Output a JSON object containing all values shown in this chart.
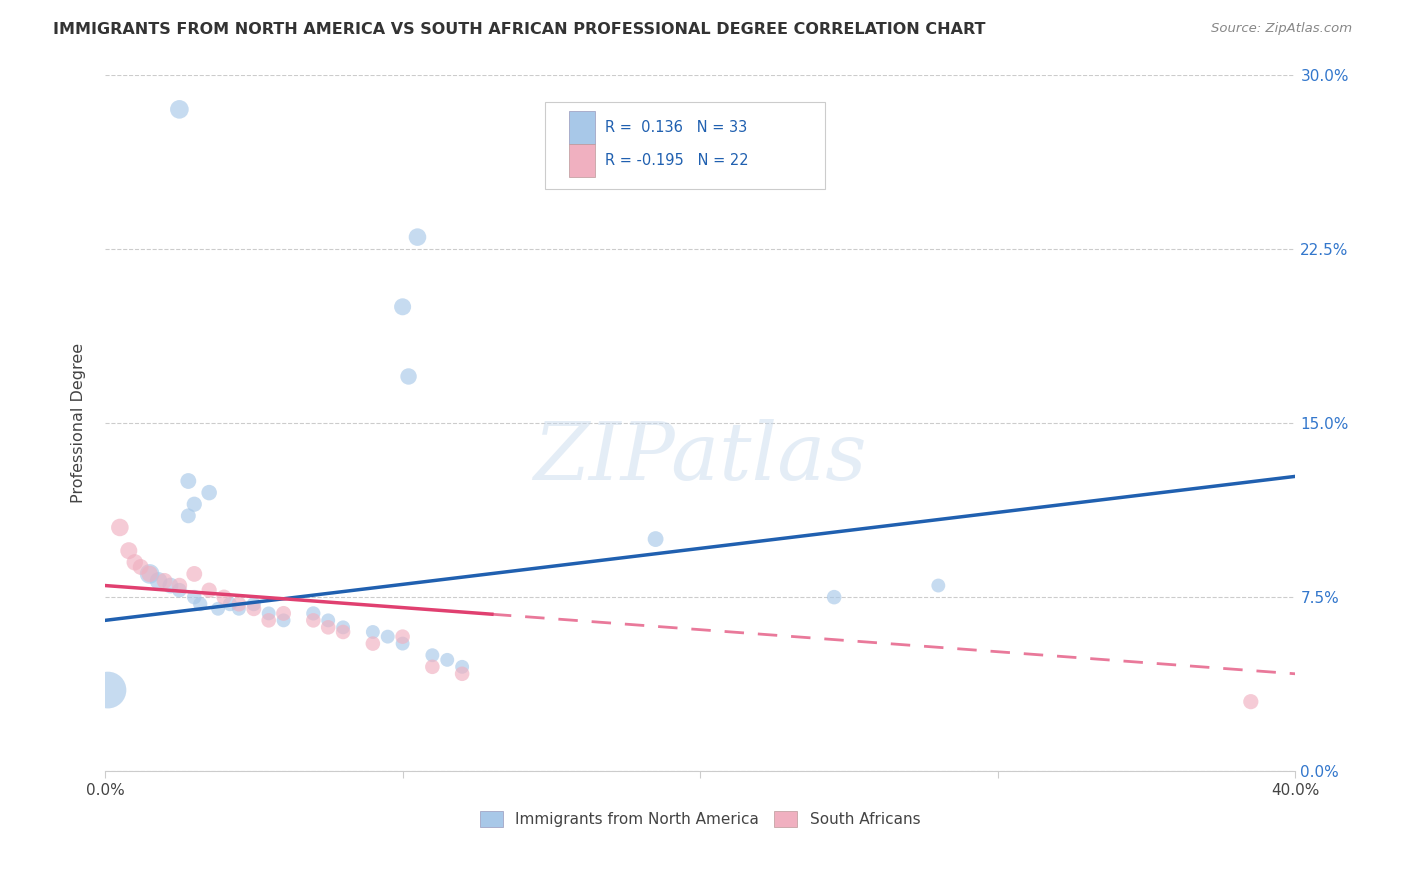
{
  "title": "IMMIGRANTS FROM NORTH AMERICA VS SOUTH AFRICAN PROFESSIONAL DEGREE CORRELATION CHART",
  "source": "Source: ZipAtlas.com",
  "ylabel": "Professional Degree",
  "yticks": [
    "0.0%",
    "7.5%",
    "15.0%",
    "22.5%",
    "30.0%"
  ],
  "ytick_vals": [
    0.0,
    7.5,
    15.0,
    22.5,
    30.0
  ],
  "xlim": [
    0.0,
    40.0
  ],
  "ylim": [
    0.0,
    30.0
  ],
  "blue_color": "#a8c8e8",
  "pink_color": "#f0b0c0",
  "blue_line_color": "#2060b0",
  "pink_line_color": "#e04070",
  "blue_line_slope": 0.155,
  "blue_line_intercept": 6.5,
  "pink_line_slope": -0.095,
  "pink_line_intercept": 8.0,
  "pink_solid_end": 13.0,
  "blue_points": [
    [
      2.5,
      28.5,
      180
    ],
    [
      10.5,
      23.0,
      160
    ],
    [
      10.0,
      20.0,
      150
    ],
    [
      10.2,
      17.0,
      140
    ],
    [
      2.8,
      12.5,
      130
    ],
    [
      3.5,
      12.0,
      125
    ],
    [
      18.5,
      10.0,
      130
    ],
    [
      3.0,
      11.5,
      120
    ],
    [
      2.8,
      11.0,
      115
    ],
    [
      1.5,
      8.5,
      200
    ],
    [
      1.8,
      8.2,
      160
    ],
    [
      2.2,
      8.0,
      130
    ],
    [
      2.5,
      7.8,
      110
    ],
    [
      3.0,
      7.5,
      110
    ],
    [
      3.2,
      7.2,
      105
    ],
    [
      3.8,
      7.0,
      100
    ],
    [
      4.2,
      7.2,
      105
    ],
    [
      4.5,
      7.0,
      100
    ],
    [
      5.0,
      7.2,
      105
    ],
    [
      5.5,
      6.8,
      100
    ],
    [
      6.0,
      6.5,
      100
    ],
    [
      7.0,
      6.8,
      105
    ],
    [
      7.5,
      6.5,
      100
    ],
    [
      8.0,
      6.2,
      100
    ],
    [
      9.0,
      6.0,
      100
    ],
    [
      9.5,
      5.8,
      100
    ],
    [
      10.0,
      5.5,
      100
    ],
    [
      11.0,
      5.0,
      100
    ],
    [
      11.5,
      4.8,
      100
    ],
    [
      12.0,
      4.5,
      100
    ],
    [
      24.5,
      7.5,
      110
    ],
    [
      28.0,
      8.0,
      100
    ],
    [
      0.1,
      3.5,
      700
    ]
  ],
  "pink_points": [
    [
      0.5,
      10.5,
      160
    ],
    [
      0.8,
      9.5,
      150
    ],
    [
      1.0,
      9.0,
      140
    ],
    [
      1.2,
      8.8,
      130
    ],
    [
      1.5,
      8.5,
      140
    ],
    [
      2.0,
      8.2,
      130
    ],
    [
      2.5,
      8.0,
      125
    ],
    [
      3.0,
      8.5,
      130
    ],
    [
      3.5,
      7.8,
      120
    ],
    [
      4.0,
      7.5,
      120
    ],
    [
      4.5,
      7.2,
      115
    ],
    [
      5.0,
      7.0,
      115
    ],
    [
      5.5,
      6.5,
      110
    ],
    [
      6.0,
      6.8,
      115
    ],
    [
      7.0,
      6.5,
      110
    ],
    [
      7.5,
      6.2,
      110
    ],
    [
      8.0,
      6.0,
      110
    ],
    [
      9.0,
      5.5,
      110
    ],
    [
      10.0,
      5.8,
      110
    ],
    [
      11.0,
      4.5,
      110
    ],
    [
      12.0,
      4.2,
      110
    ],
    [
      38.5,
      3.0,
      120
    ]
  ]
}
